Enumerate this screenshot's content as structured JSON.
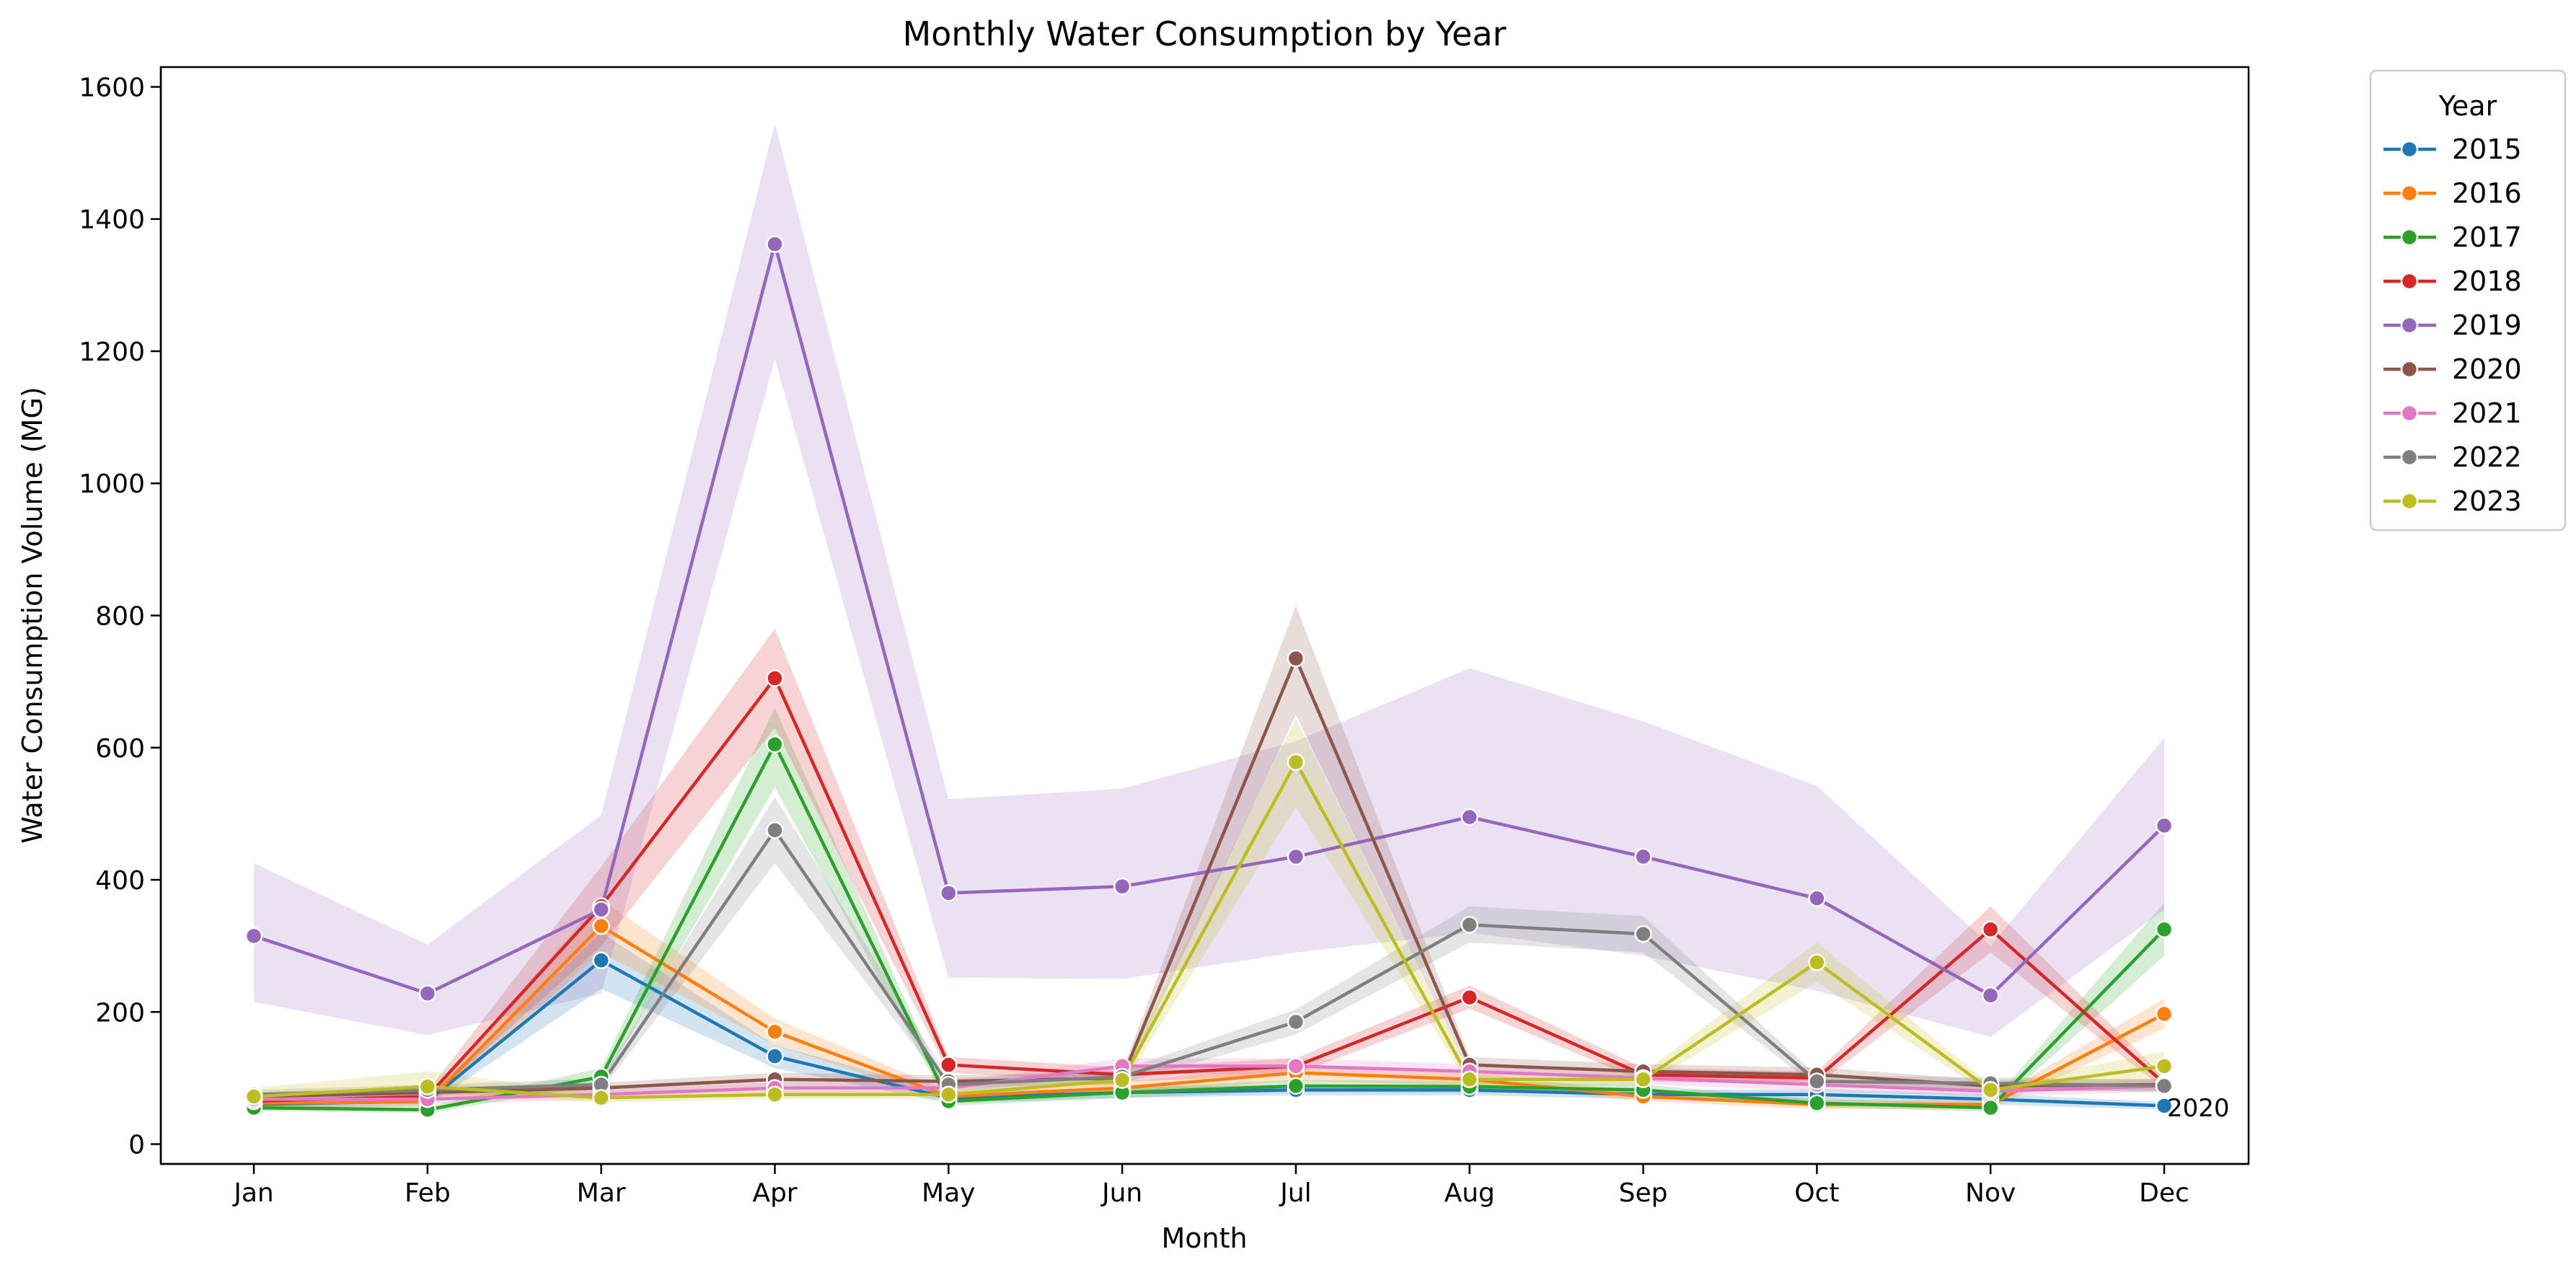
{
  "chart_data": {
    "type": "line",
    "title": "Monthly Water Consumption by Year",
    "xlabel": "Month",
    "ylabel": "Water Consumption Volume (MG)",
    "categories": [
      "Jan",
      "Feb",
      "Mar",
      "Apr",
      "May",
      "Jun",
      "Jul",
      "Aug",
      "Sep",
      "Oct",
      "Nov",
      "Dec"
    ],
    "ylim": [
      -30,
      1630
    ],
    "yticks": [
      0,
      200,
      400,
      600,
      800,
      1000,
      1200,
      1400,
      1600
    ],
    "grid": false,
    "legend": {
      "title": "Year",
      "placement": "outside-top-right"
    },
    "annotations": [
      {
        "text": "2020",
        "x": "Dec",
        "y": 55
      }
    ],
    "series": [
      {
        "name": "2015",
        "color": "#1f77b4",
        "values": [
          60,
          65,
          278,
          133,
          70,
          78,
          82,
          82,
          75,
          75,
          68,
          58
        ],
        "band": [
          [
            55,
            65
          ],
          [
            58,
            72
          ],
          [
            235,
            320
          ],
          [
            115,
            150
          ],
          [
            62,
            78
          ],
          [
            70,
            86
          ],
          [
            74,
            90
          ],
          [
            74,
            90
          ],
          [
            68,
            82
          ],
          [
            67,
            83
          ],
          [
            60,
            76
          ],
          [
            52,
            64
          ]
        ]
      },
      {
        "name": "2016",
        "color": "#ff7f0e",
        "values": [
          62,
          64,
          330,
          170,
          72,
          85,
          108,
          98,
          72,
          60,
          60,
          197
        ],
        "band": [
          [
            56,
            68
          ],
          [
            57,
            71
          ],
          [
            290,
            370
          ],
          [
            150,
            190
          ],
          [
            64,
            80
          ],
          [
            76,
            94
          ],
          [
            96,
            120
          ],
          [
            88,
            108
          ],
          [
            65,
            79
          ],
          [
            53,
            67
          ],
          [
            53,
            67
          ],
          [
            175,
            220
          ]
        ]
      },
      {
        "name": "2017",
        "color": "#2ca02c",
        "values": [
          55,
          52,
          102,
          605,
          65,
          78,
          88,
          87,
          82,
          62,
          55,
          325
        ],
        "band": [
          [
            50,
            60
          ],
          [
            47,
            57
          ],
          [
            90,
            115
          ],
          [
            540,
            660
          ],
          [
            58,
            72
          ],
          [
            70,
            86
          ],
          [
            79,
            97
          ],
          [
            78,
            96
          ],
          [
            74,
            90
          ],
          [
            56,
            68
          ],
          [
            49,
            61
          ],
          [
            285,
            365
          ]
        ]
      },
      {
        "name": "2018",
        "color": "#d62728",
        "values": [
          65,
          72,
          360,
          705,
          120,
          105,
          118,
          222,
          105,
          100,
          325,
          92
        ],
        "band": [
          [
            58,
            72
          ],
          [
            64,
            80
          ],
          [
            300,
            420
          ],
          [
            630,
            780
          ],
          [
            108,
            132
          ],
          [
            94,
            116
          ],
          [
            106,
            130
          ],
          [
            205,
            240
          ],
          [
            95,
            115
          ],
          [
            90,
            110
          ],
          [
            290,
            360
          ],
          [
            83,
            101
          ]
        ]
      },
      {
        "name": "2019",
        "color": "#9467bd",
        "values": [
          315,
          228,
          355,
          1362,
          380,
          390,
          435,
          495,
          435,
          372,
          225,
          482
        ],
        "band": [
          [
            215,
            425
          ],
          [
            165,
            302
          ],
          [
            228,
            498
          ],
          [
            1188,
            1545
          ],
          [
            252,
            522
          ],
          [
            250,
            538
          ],
          [
            290,
            610
          ],
          [
            320,
            720
          ],
          [
            285,
            640
          ],
          [
            232,
            542
          ],
          [
            162,
            300
          ],
          [
            355,
            615
          ]
        ]
      },
      {
        "name": "2020",
        "color": "#8c564b",
        "values": [
          72,
          78,
          85,
          98,
          95,
          100,
          735,
          120,
          110,
          105,
          88,
          90
        ],
        "band": [
          [
            65,
            79
          ],
          [
            70,
            86
          ],
          [
            77,
            93
          ],
          [
            88,
            108
          ],
          [
            86,
            104
          ],
          [
            90,
            110
          ],
          [
            650,
            815
          ],
          [
            108,
            132
          ],
          [
            99,
            121
          ],
          [
            94,
            116
          ],
          [
            79,
            97
          ],
          [
            81,
            99
          ]
        ]
      },
      {
        "name": "2021",
        "color": "#e377c2",
        "values": [
          68,
          68,
          75,
          85,
          85,
          118,
          118,
          110,
          100,
          90,
          80,
          88
        ],
        "band": [
          [
            61,
            75
          ],
          [
            61,
            75
          ],
          [
            67,
            83
          ],
          [
            77,
            93
          ],
          [
            77,
            93
          ],
          [
            106,
            130
          ],
          [
            106,
            130
          ],
          [
            99,
            121
          ],
          [
            90,
            110
          ],
          [
            81,
            99
          ],
          [
            72,
            88
          ],
          [
            79,
            97
          ]
        ]
      },
      {
        "name": "2022",
        "color": "#7f7f7f",
        "values": [
          75,
          82,
          90,
          475,
          90,
          102,
          185,
          332,
          318,
          95,
          92,
          88
        ],
        "band": [
          [
            68,
            82
          ],
          [
            74,
            90
          ],
          [
            81,
            99
          ],
          [
            425,
            525
          ],
          [
            81,
            99
          ],
          [
            92,
            112
          ],
          [
            166,
            204
          ],
          [
            305,
            360
          ],
          [
            290,
            345
          ],
          [
            86,
            104
          ],
          [
            83,
            101
          ],
          [
            79,
            97
          ]
        ]
      },
      {
        "name": "2023",
        "color": "#bcbd22",
        "values": [
          72,
          87,
          70,
          75,
          75,
          97,
          578,
          98,
          98,
          275,
          82,
          118
        ],
        "band": [
          [
            65,
            85
          ],
          [
            75,
            110
          ],
          [
            63,
            77
          ],
          [
            68,
            82
          ],
          [
            68,
            82
          ],
          [
            87,
            107
          ],
          [
            510,
            645
          ],
          [
            88,
            108
          ],
          [
            88,
            108
          ],
          [
            245,
            305
          ],
          [
            74,
            90
          ],
          [
            98,
            140
          ]
        ]
      }
    ]
  }
}
